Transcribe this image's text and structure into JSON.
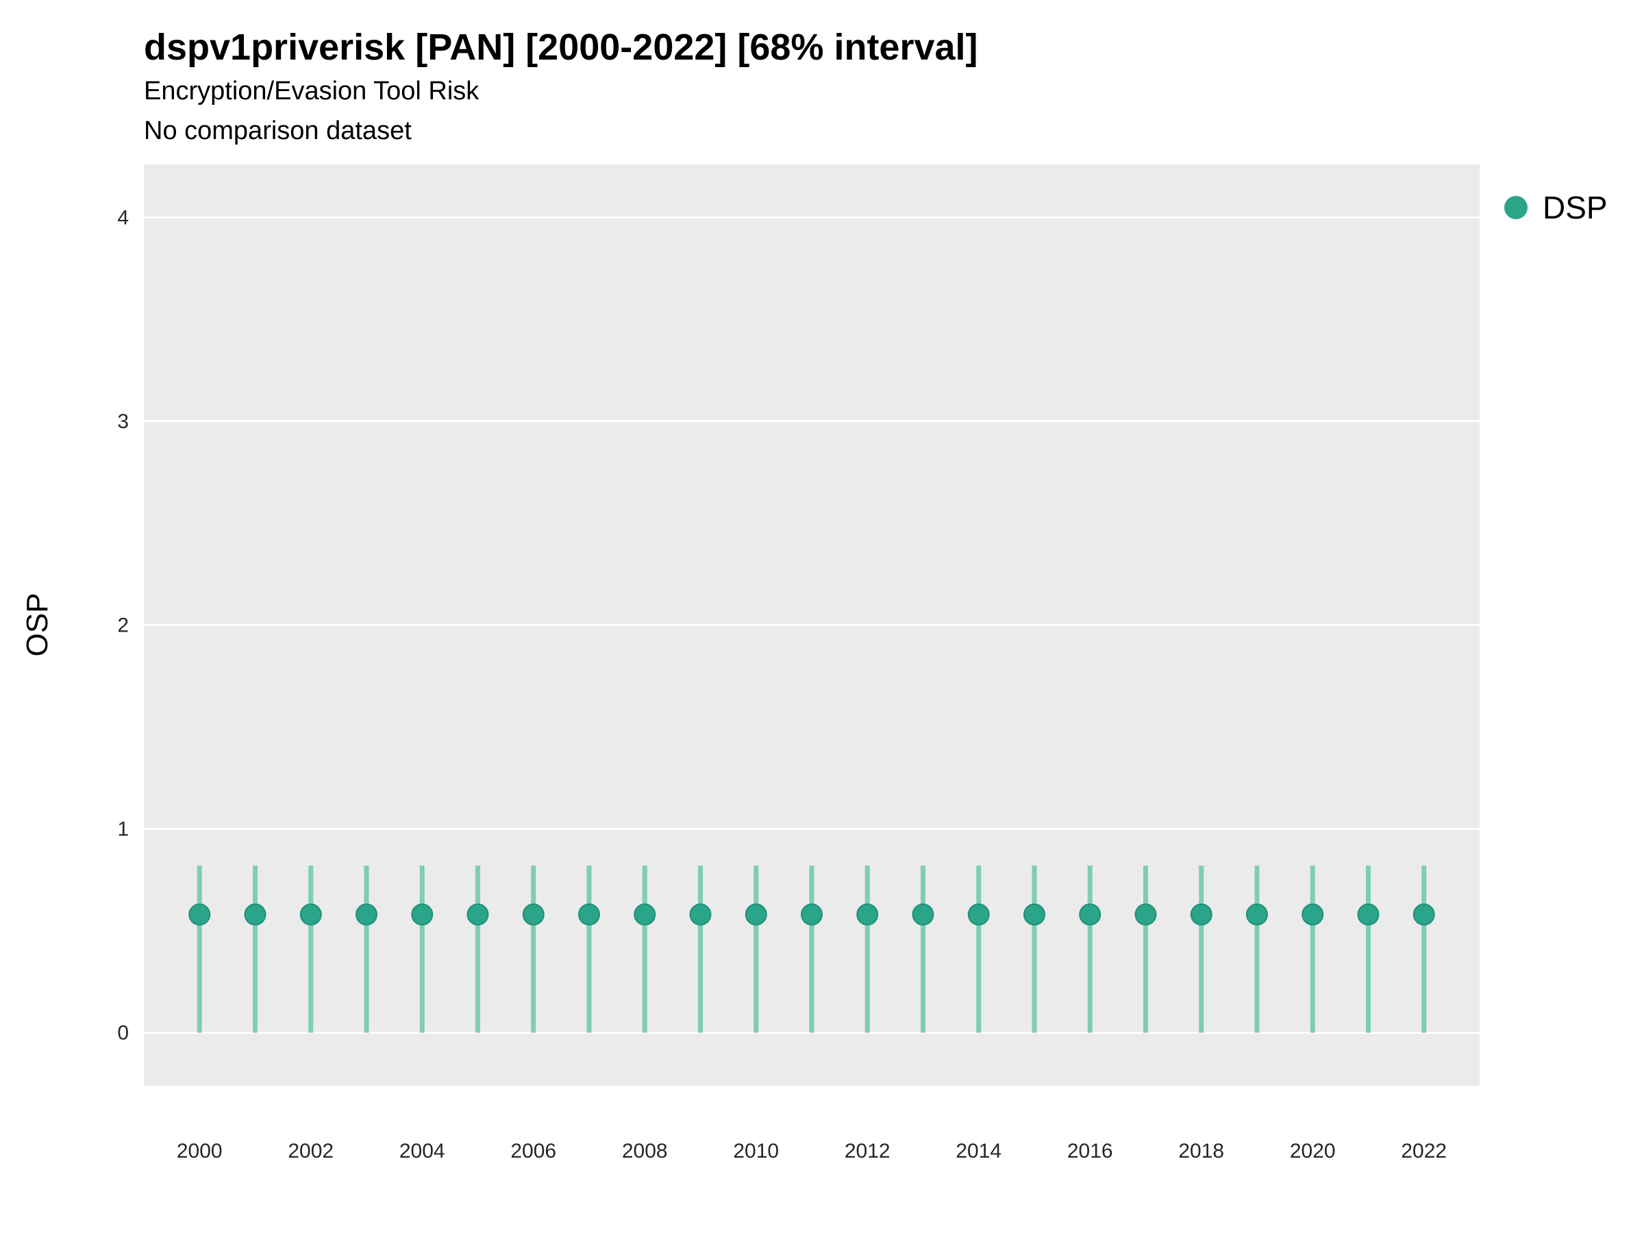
{
  "chart_data": {
    "type": "scatter",
    "title": "dspv1priverisk [PAN] [2000-2022] [68% interval]",
    "subtitle": "Encryption/Evasion Tool Risk",
    "note": "No comparison dataset",
    "xlabel": "",
    "ylabel": "OSP",
    "xlim": [
      1999,
      2023
    ],
    "ylim": [
      -0.26,
      4.26
    ],
    "xticks": [
      2000,
      2002,
      2004,
      2006,
      2008,
      2010,
      2012,
      2014,
      2016,
      2018,
      2020,
      2022
    ],
    "yticks": [
      0,
      1,
      2,
      3,
      4
    ],
    "grid": "major horizontal white on gray panel",
    "legend": {
      "position": "right",
      "entries": [
        {
          "label": "DSP",
          "color": "#2aa58a"
        }
      ]
    },
    "colors": {
      "panel": "#EBEBEB",
      "grid": "#FFFFFF",
      "point": "#2aa58a",
      "point_edge": "#1f8f76",
      "errorbar": "#7fccb7",
      "tick_text": "#262626"
    },
    "series": [
      {
        "name": "DSP",
        "color": "#2aa58a",
        "x": [
          2000,
          2001,
          2002,
          2003,
          2004,
          2005,
          2006,
          2007,
          2008,
          2009,
          2010,
          2011,
          2012,
          2013,
          2014,
          2015,
          2016,
          2017,
          2018,
          2019,
          2020,
          2021,
          2022
        ],
        "y": [
          0.58,
          0.58,
          0.58,
          0.58,
          0.58,
          0.58,
          0.58,
          0.58,
          0.58,
          0.58,
          0.58,
          0.58,
          0.58,
          0.58,
          0.58,
          0.58,
          0.58,
          0.58,
          0.58,
          0.58,
          0.58,
          0.58,
          0.58
        ],
        "lower": [
          0.0,
          0.0,
          0.0,
          0.0,
          0.0,
          0.0,
          0.0,
          0.0,
          0.0,
          0.0,
          0.0,
          0.0,
          0.0,
          0.0,
          0.0,
          0.0,
          0.0,
          0.0,
          0.0,
          0.0,
          0.0,
          0.0,
          0.0
        ],
        "upper": [
          0.82,
          0.82,
          0.82,
          0.82,
          0.82,
          0.82,
          0.82,
          0.82,
          0.82,
          0.82,
          0.82,
          0.82,
          0.82,
          0.82,
          0.82,
          0.82,
          0.82,
          0.82,
          0.82,
          0.82,
          0.82,
          0.82,
          0.82
        ]
      }
    ],
    "interval_label": "68% interval"
  }
}
